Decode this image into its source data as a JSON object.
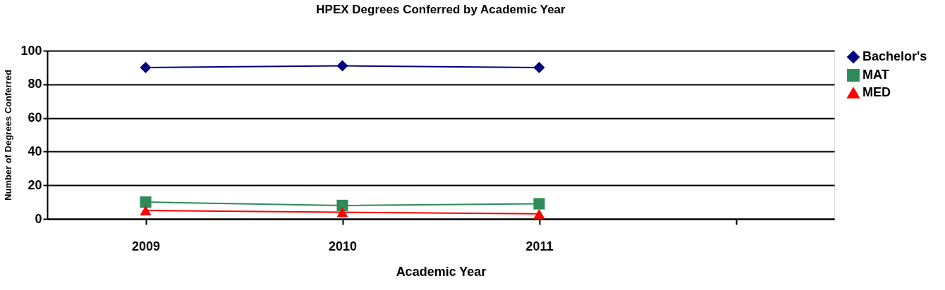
{
  "chart_data": {
    "type": "line",
    "title": "HPEX Degrees Conferred by Academic Year",
    "xlabel": "Academic Year",
    "ylabel": "Number of Degrees Conferred",
    "categories": [
      "2009",
      "2010",
      "2011",
      null
    ],
    "series": [
      {
        "name": "Bachelor's",
        "color": "#000080",
        "marker": "diamond",
        "values": [
          90,
          91,
          90,
          null
        ]
      },
      {
        "name": "MAT",
        "color": "#2e8b57",
        "marker": "square",
        "values": [
          10,
          8,
          9,
          null
        ]
      },
      {
        "name": "MED",
        "color": "#ff0000",
        "marker": "triangle",
        "values": [
          5,
          4,
          3,
          null
        ]
      }
    ],
    "ylim": [
      0,
      100
    ],
    "yticks": [
      0,
      20,
      40,
      60,
      80,
      100
    ],
    "grid": "y",
    "legend": "right",
    "line_style": "solid"
  }
}
